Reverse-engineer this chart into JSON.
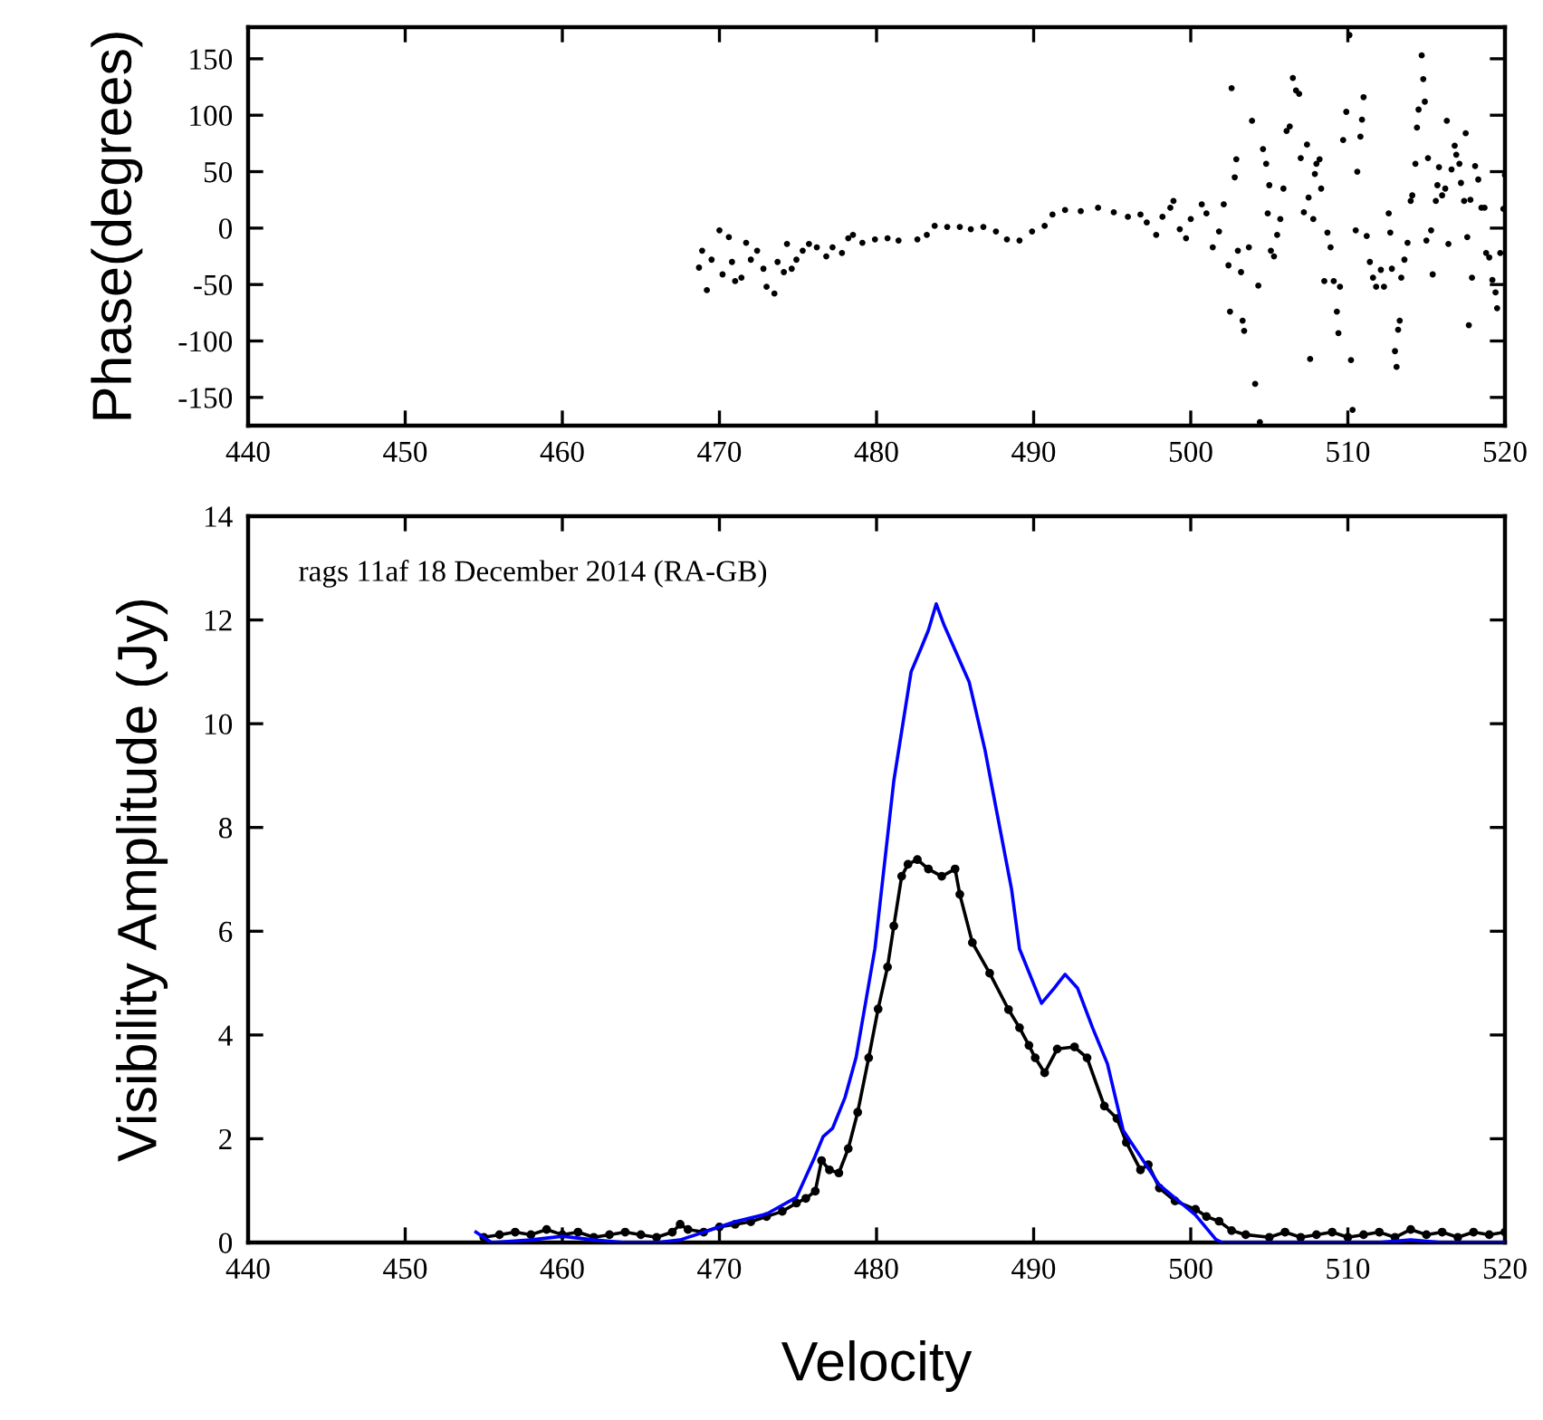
{
  "chart_data": [
    {
      "type": "scatter",
      "ylabel": "Phase(degrees)",
      "xlim": [
        440,
        520
      ],
      "xticks": [
        440,
        450,
        460,
        470,
        480,
        490,
        500,
        510,
        520
      ],
      "ylim": [
        -175,
        178
      ],
      "yticks": [
        -150,
        -100,
        -50,
        0,
        50,
        100,
        150
      ],
      "grid": false,
      "marker": "circle",
      "series": [
        {
          "color": "#000000",
          "x": [
            468.7,
            468.9,
            469.2,
            469.5,
            470,
            470.2,
            470.6,
            470.8,
            471,
            471.4,
            471.7,
            472,
            472.4,
            472.8,
            473,
            473.5,
            473.7,
            474.1,
            474.3,
            474.6,
            474.9,
            475.3,
            475.7,
            476.2,
            476.8,
            477.2,
            477.8,
            478.2,
            478.5,
            479.1,
            479.9,
            480.7,
            481.4,
            482.6,
            483.2,
            483.7,
            484.5,
            485.3,
            486,
            486.8,
            487.6,
            488.3,
            489.1,
            489.9,
            490.7,
            491.2,
            492,
            493,
            494.1,
            495.1,
            496,
            496.8,
            497.2,
            497.8,
            498.2,
            498.7,
            498.9,
            499.3,
            499.7,
            500,
            500.7,
            501,
            501.4,
            501.8,
            502.1,
            502.4,
            502.5,
            502.6,
            502.8,
            502.9,
            503,
            503.2,
            503.3,
            503.4,
            503.7,
            503.9,
            504.1,
            504.3,
            504.4,
            504.6,
            504.8,
            505,
            504.9,
            505.1,
            505.3,
            505.5,
            505.7,
            505.9,
            506.1,
            506.3,
            506.5,
            506.7,
            506.9,
            507,
            507.2,
            507.4,
            507.5,
            507.6,
            507.8,
            507.9,
            508,
            508.2,
            508.3,
            508.5,
            508.7,
            508.9,
            509.1,
            509.3,
            509.4,
            509.5,
            509.7,
            509.9,
            510.1,
            510.2,
            510.3,
            510.5,
            510.6,
            510.8,
            510.9,
            511,
            511.2,
            511.4,
            511.6,
            511.8,
            512.1,
            512.3,
            512.6,
            512.7,
            512.8,
            513,
            513.1,
            513.2,
            513.3,
            513.4,
            513.6,
            513.8,
            514,
            514.1,
            514.3,
            514.4,
            514.5,
            514.7,
            514.8,
            514.9,
            515,
            515.1,
            515.3,
            515.4,
            515.6,
            515.7,
            515.8,
            516,
            516.2,
            516.3,
            516.4,
            516.6,
            516.8,
            516.9,
            517.1,
            517.2,
            517.4,
            517.5,
            517.6,
            517.7,
            517.8,
            517.9,
            518.1,
            518.3,
            518.5,
            518.7,
            518.8,
            519,
            519.2,
            519.4,
            519.5,
            519.7,
            519.9,
            520
          ],
          "values": [
            -35,
            -20,
            -55,
            -28,
            -2,
            -41,
            -8,
            -30,
            -47,
            -44,
            -13,
            -28,
            -20,
            -36,
            -52,
            -58,
            -30,
            -39,
            -14,
            -36,
            -28,
            -20,
            -14,
            -17,
            -25,
            -17,
            -22,
            -9,
            -6,
            -13,
            -10,
            -9,
            -11,
            -10,
            -6,
            2,
            1,
            1,
            -1,
            1,
            -3,
            -10,
            -11,
            -3,
            2,
            12,
            16,
            15,
            18,
            14,
            10,
            12,
            5,
            -6,
            10,
            18,
            24,
            -1,
            -9,
            8,
            21,
            13,
            -17,
            -3,
            21,
            -33,
            -74,
            124,
            45,
            61,
            -20,
            -39,
            -82,
            -91,
            -17,
            95,
            -138,
            -51,
            -172,
            70,
            57,
            38,
            13,
            -20,
            -25,
            -6,
            8,
            35,
            86,
            90,
            133,
            122,
            119,
            62,
            14,
            74,
            27,
            -116,
            8,
            48,
            57,
            61,
            35,
            -47,
            -4,
            -17,
            -47,
            -74,
            -93,
            -52,
            78,
            103,
            171,
            -117,
            -161,
            -2,
            50,
            81,
            96,
            116,
            -7,
            -30,
            -44,
            -52,
            -37,
            -52,
            13,
            -4,
            -36,
            -109,
            -123,
            -90,
            -82,
            -44,
            -28,
            -13,
            24,
            29,
            57,
            89,
            105,
            153,
            132,
            112,
            -11,
            62,
            -2,
            -41,
            24,
            38,
            54,
            29,
            35,
            95,
            -14,
            52,
            73,
            65,
            57,
            40,
            24,
            84,
            -8,
            -86,
            25,
            -44,
            55,
            43,
            18,
            18,
            -22,
            -26,
            -46,
            -57,
            -71,
            -22,
            17,
            47
          ]
        }
      ]
    },
    {
      "type": "line",
      "xlabel": "Velocity",
      "ylabel": "Visibility Amplitude (Jy)",
      "xlim": [
        440,
        520
      ],
      "xticks": [
        440,
        450,
        460,
        470,
        480,
        490,
        500,
        510,
        520
      ],
      "ylim": [
        0,
        14
      ],
      "yticks": [
        0,
        2,
        4,
        6,
        8,
        10,
        12,
        14
      ],
      "grid": false,
      "annotations": [
        "rags 11af 18 December 2014 (RA-GB)"
      ],
      "series": [
        {
          "color": "#000000",
          "marker": "circle",
          "x": [
            455,
            456,
            457,
            458,
            459,
            460,
            461,
            462,
            463,
            464,
            465,
            466,
            467,
            467.5,
            468,
            469,
            470,
            471,
            472,
            473,
            474,
            474.9,
            475.5,
            476.1,
            476.5,
            477,
            477.6,
            478.2,
            478.8,
            479.5,
            480.1,
            480.7,
            481.1,
            481.6,
            482,
            482.6,
            483.3,
            484.15,
            485,
            485.3,
            486.1,
            487.2,
            488.4,
            489.1,
            489.7,
            490.1,
            490.7,
            491.5,
            492.6,
            493.4,
            494.5,
            495.3,
            495.9,
            496.8,
            497.3,
            498,
            499,
            500.3,
            501,
            501.8,
            502.6,
            503.5,
            505,
            506,
            507,
            508,
            509,
            510,
            511,
            512,
            513,
            514,
            515,
            516,
            517,
            518,
            519,
            520
          ],
          "values": [
            0.1,
            0.15,
            0.2,
            0.15,
            0.25,
            0.15,
            0.2,
            0.1,
            0.15,
            0.2,
            0.15,
            0.1,
            0.2,
            0.35,
            0.25,
            0.2,
            0.3,
            0.35,
            0.4,
            0.5,
            0.6,
            0.76,
            0.85,
            0.99,
            1.58,
            1.4,
            1.34,
            1.81,
            2.51,
            3.56,
            4.5,
            5.31,
            6.1,
            7.06,
            7.29,
            7.38,
            7.2,
            7.06,
            7.2,
            6.71,
            5.78,
            5.19,
            4.49,
            4.14,
            3.8,
            3.56,
            3.27,
            3.73,
            3.77,
            3.56,
            2.63,
            2.39,
            1.93,
            1.4,
            1.5,
            1.05,
            0.8,
            0.64,
            0.5,
            0.41,
            0.23,
            0.15,
            0.1,
            0.2,
            0.1,
            0.15,
            0.2,
            0.1,
            0.15,
            0.2,
            0.1,
            0.25,
            0.15,
            0.2,
            0.1,
            0.2,
            0.15,
            0.2
          ]
        },
        {
          "color": "#0000ff",
          "marker": "none",
          "x": [
            454.5,
            455.5,
            458,
            460,
            462,
            464,
            466,
            467.5,
            469,
            471,
            473,
            474.9,
            476,
            476.6,
            477.2,
            478,
            478.7,
            479.9,
            481.1,
            482.2,
            482.8,
            483.3,
            483.8,
            484.3,
            485.9,
            486.9,
            487.4,
            488.6,
            489.1,
            490.5,
            491.3,
            492,
            492.8,
            493.75,
            494.7,
            495.7,
            498,
            500.3,
            501.6,
            502,
            512,
            514,
            516,
            520
          ],
          "values": [
            0.2,
            0,
            0.05,
            0.12,
            0.05,
            0,
            0,
            0.05,
            0.2,
            0.4,
            0.55,
            0.87,
            1.6,
            2.04,
            2.2,
            2.8,
            3.57,
            5.67,
            8.9,
            11,
            11.43,
            11.8,
            12.31,
            11.9,
            10.8,
            9.5,
            8.7,
            6.8,
            5.66,
            4.61,
            4.9,
            5.17,
            4.9,
            4.14,
            3.44,
            2.16,
            1.11,
            0.53,
            0.06,
            0,
            0,
            0.05,
            0,
            0
          ]
        }
      ]
    }
  ]
}
